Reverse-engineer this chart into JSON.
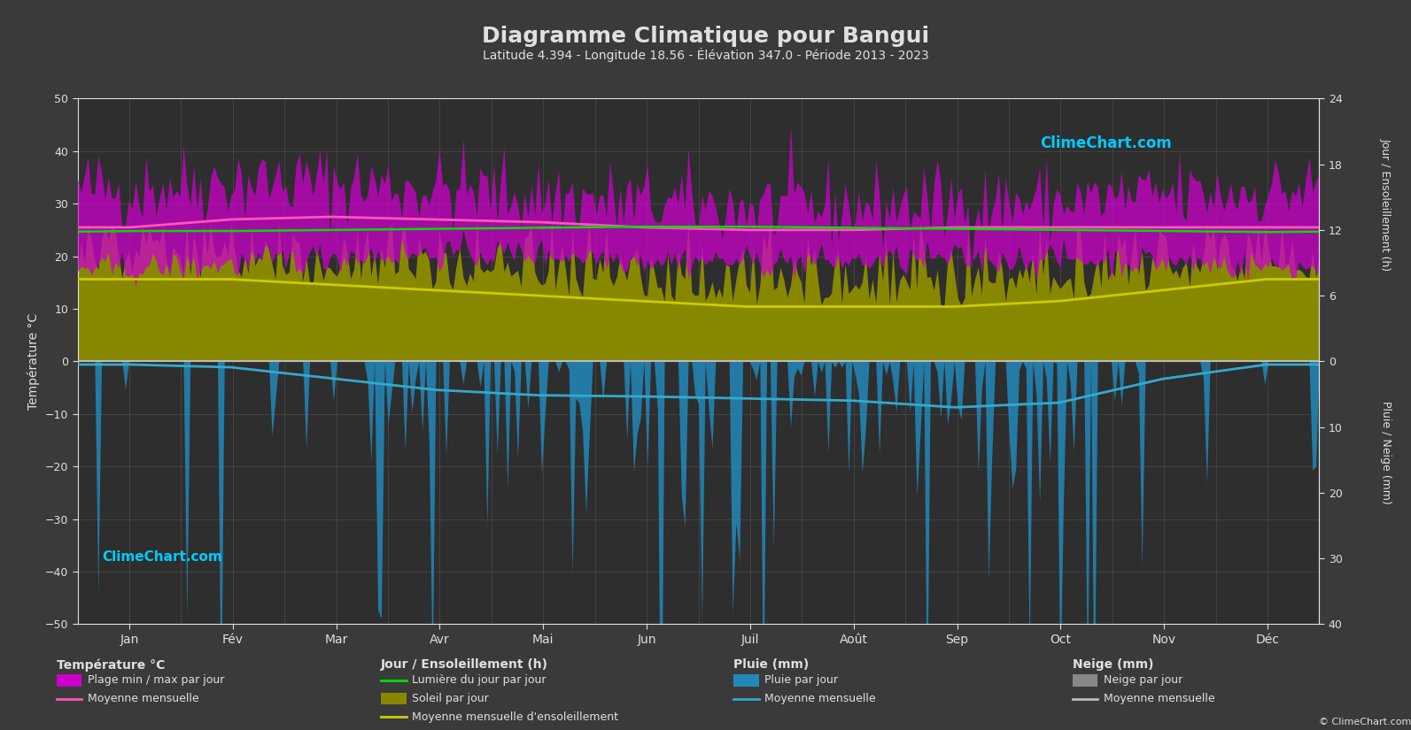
{
  "title": "Diagramme Climatique pour Bangui",
  "subtitle": "Latitude 4.394 - Longitude 18.56 - Élévation 347.0 - Période 2013 - 2023",
  "background_color": "#3a3a3a",
  "plot_bg_color": "#2e2e2e",
  "text_color": "#e0e0e0",
  "months": [
    "Jan",
    "Fév",
    "Mar",
    "Avr",
    "Mai",
    "Jun",
    "Juil",
    "Août",
    "Sep",
    "Oct",
    "Nov",
    "Déc"
  ],
  "temp_ylim": [
    -50,
    50
  ],
  "days_per_month": [
    31,
    28,
    31,
    30,
    31,
    30,
    31,
    31,
    30,
    31,
    30,
    31
  ],
  "temp_min_monthly": [
    17.5,
    18.5,
    20.0,
    20.5,
    20.5,
    19.5,
    19.0,
    19.0,
    19.5,
    19.5,
    19.0,
    18.0
  ],
  "temp_max_monthly": [
    33.0,
    34.5,
    34.0,
    33.0,
    31.5,
    30.0,
    29.5,
    29.5,
    30.0,
    30.5,
    31.5,
    32.5
  ],
  "temp_mean_monthly": [
    25.5,
    27.0,
    27.5,
    27.0,
    26.5,
    25.5,
    25.0,
    25.0,
    25.5,
    25.5,
    25.5,
    25.5
  ],
  "sunshine_hours_monthly": [
    7.5,
    7.5,
    7.0,
    6.5,
    6.0,
    5.5,
    5.0,
    5.0,
    5.0,
    5.5,
    6.5,
    7.5
  ],
  "daylight_hours_monthly": [
    11.9,
    11.9,
    12.0,
    12.1,
    12.2,
    12.3,
    12.3,
    12.2,
    12.1,
    12.0,
    11.9,
    11.8
  ],
  "rain_monthly_mm": [
    15,
    25,
    80,
    130,
    160,
    160,
    175,
    185,
    210,
    195,
    80,
    15
  ],
  "snow_monthly_mm": [
    0,
    0,
    0,
    0,
    0,
    0,
    0,
    0,
    0,
    0,
    0,
    0
  ],
  "grid_color": "#777777",
  "magenta_fill": "#cc00cc",
  "yellow_fill": "#888800",
  "blue_fill": "#2288bb",
  "green_line_color": "#00dd00",
  "yellow_line_color": "#cccc00",
  "pink_line_color": "#ff55bb",
  "blue_line_color": "#33aacc",
  "snow_line_color": "#bbbbbb",
  "sun_scale": 0.48,
  "rain_scale": 0.8,
  "temp_noise_max": 4.0,
  "temp_noise_min": 1.5,
  "sun_noise": 3.5,
  "rain_prob_scale": 12.0,
  "rain_exp_multiplier": 1.2
}
